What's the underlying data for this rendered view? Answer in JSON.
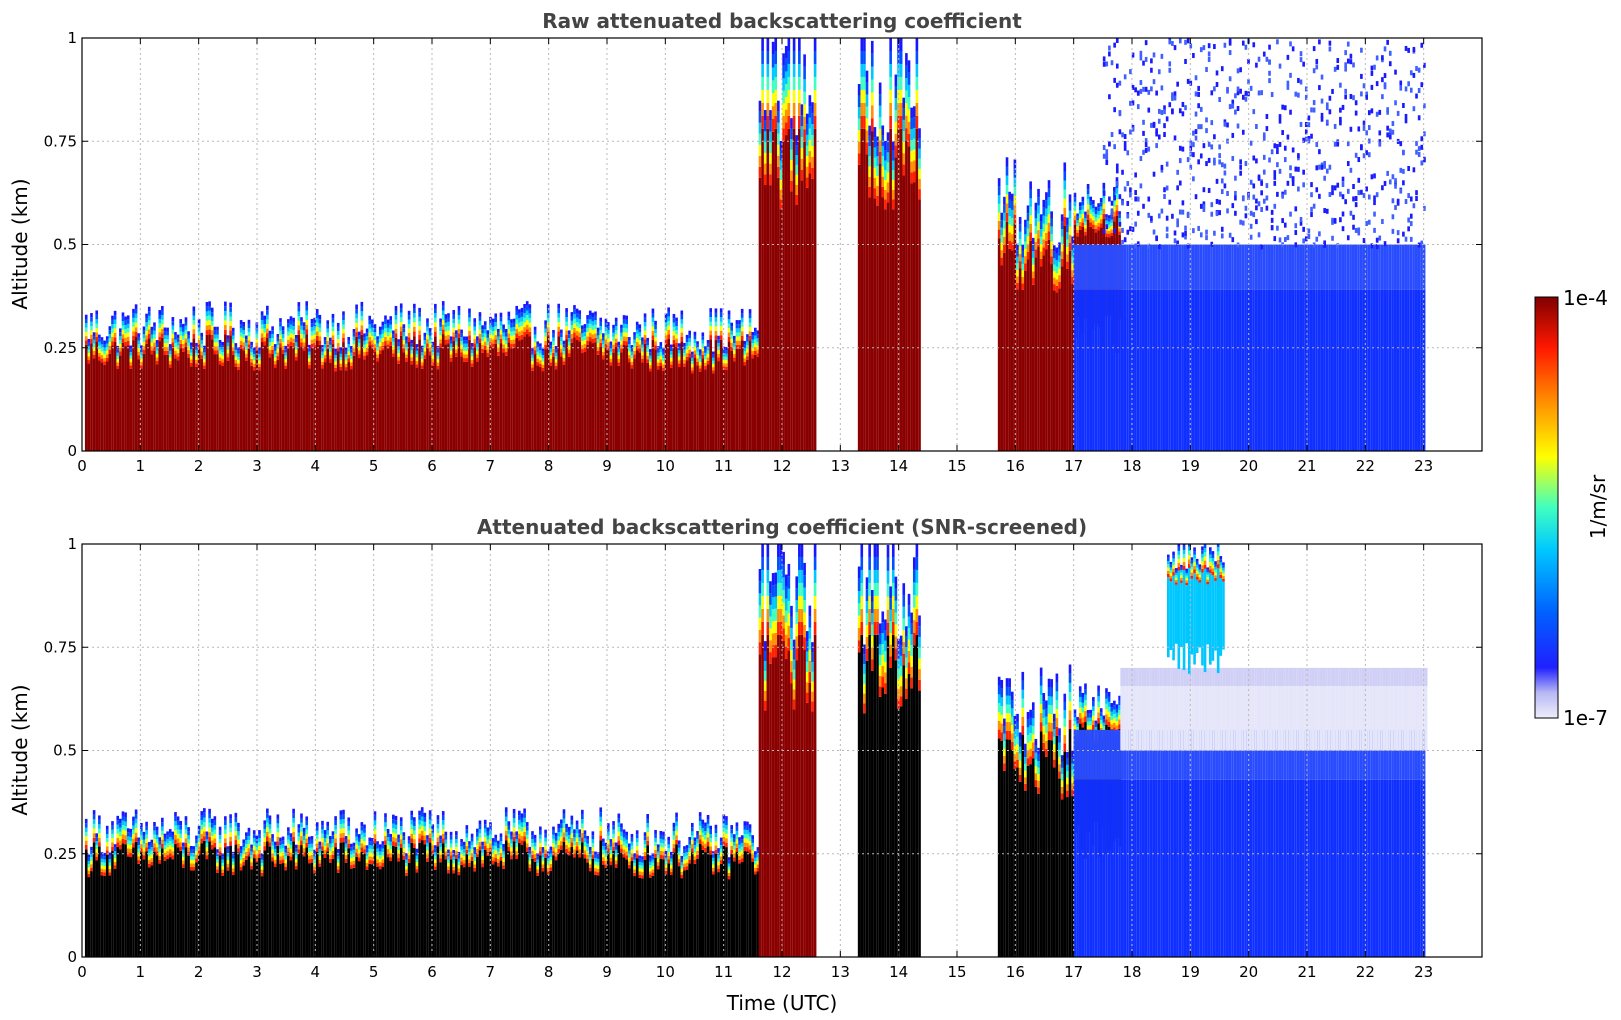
{
  "chart_data": [
    {
      "type": "heatmap",
      "title": "Raw attenuated backscattering coefficient",
      "xlabel": "",
      "ylabel": "Altitude (km)",
      "xlim": [
        0,
        24
      ],
      "ylim": [
        0,
        1
      ],
      "x_ticks": [
        "0",
        "1",
        "2",
        "3",
        "4",
        "5",
        "6",
        "7",
        "8",
        "9",
        "10",
        "11",
        "12",
        "13",
        "14",
        "15",
        "16",
        "17",
        "18",
        "19",
        "20",
        "21",
        "22",
        "23"
      ],
      "y_ticks": [
        "0",
        "0.25",
        "0.5",
        "0.75",
        "1"
      ],
      "grid": true,
      "features": [
        {
          "type": "layer",
          "x": [
            0.05,
            9
          ],
          "y_top": 0.33,
          "level": "high"
        },
        {
          "type": "layer",
          "x": [
            9,
            11.6
          ],
          "y_top": 0.32,
          "level": "high"
        },
        {
          "type": "plume",
          "x": [
            11.6,
            12.6
          ],
          "y_top": 1,
          "level": "high"
        },
        {
          "type": "plume",
          "x": [
            13.3,
            14.4
          ],
          "y_top": 1,
          "level": "high"
        },
        {
          "type": "layer",
          "x": [
            15.7,
            17
          ],
          "y_top": 0.65,
          "level": "high"
        },
        {
          "type": "cloud",
          "x": [
            17,
            17.8
          ],
          "y": [
            0.25,
            0.65
          ],
          "level": "high"
        },
        {
          "type": "noise",
          "x": [
            17,
            23.05
          ],
          "y": [
            0,
            0.5
          ],
          "level": "low"
        },
        {
          "type": "speckle",
          "x": [
            17.5,
            23.05
          ],
          "y": [
            0.5,
            1
          ],
          "level": "low"
        }
      ]
    },
    {
      "type": "heatmap",
      "title": "Attenuated backscattering coefficient (SNR-screened)",
      "xlabel": "Time (UTC)",
      "ylabel": "Altitude (km)",
      "xlim": [
        0,
        24
      ],
      "ylim": [
        0,
        1
      ],
      "x_ticks": [
        "0",
        "1",
        "2",
        "3",
        "4",
        "5",
        "6",
        "7",
        "8",
        "9",
        "10",
        "11",
        "12",
        "13",
        "14",
        "15",
        "16",
        "17",
        "18",
        "19",
        "20",
        "21",
        "22",
        "23"
      ],
      "y_ticks": [
        "0",
        "0.25",
        "0.5",
        "0.75",
        "1"
      ],
      "grid": true,
      "features": [
        {
          "type": "layer",
          "x": [
            0.05,
            9
          ],
          "y_top": 0.33,
          "level": "saturated"
        },
        {
          "type": "layer",
          "x": [
            9,
            11.6
          ],
          "y_top": 0.32,
          "level": "saturated"
        },
        {
          "type": "plume",
          "x": [
            11.6,
            12.6
          ],
          "y_top": 1,
          "level": "high"
        },
        {
          "type": "plume",
          "x": [
            13.3,
            14.4
          ],
          "y_top": 1,
          "level": "saturated"
        },
        {
          "type": "layer",
          "x": [
            15.7,
            17
          ],
          "y_top": 0.65,
          "level": "saturated"
        },
        {
          "type": "cloud",
          "x": [
            17,
            17.8
          ],
          "y": [
            0.25,
            0.65
          ],
          "level": "saturated"
        },
        {
          "type": "noise",
          "x": [
            17,
            23.05
          ],
          "y": [
            0,
            0.55
          ],
          "level": "low"
        },
        {
          "type": "haze",
          "x": [
            17.8,
            23.05
          ],
          "y": [
            0.5,
            0.7
          ],
          "level": "very-low"
        },
        {
          "type": "streak",
          "x": [
            18.6,
            19.6
          ],
          "y": [
            0.7,
            1
          ],
          "level": "mid"
        }
      ]
    }
  ],
  "colorbar": {
    "label": "1/m/sr",
    "max_label": "1e-4",
    "min_label": "1e-7",
    "scale": "log",
    "colormap": "jet",
    "colors": [
      "#eeeefc",
      "#b8b8f4",
      "#2020ff",
      "#0060ff",
      "#00c8ff",
      "#40ffc0",
      "#ffff00",
      "#ff9000",
      "#ff1800",
      "#800000"
    ]
  }
}
